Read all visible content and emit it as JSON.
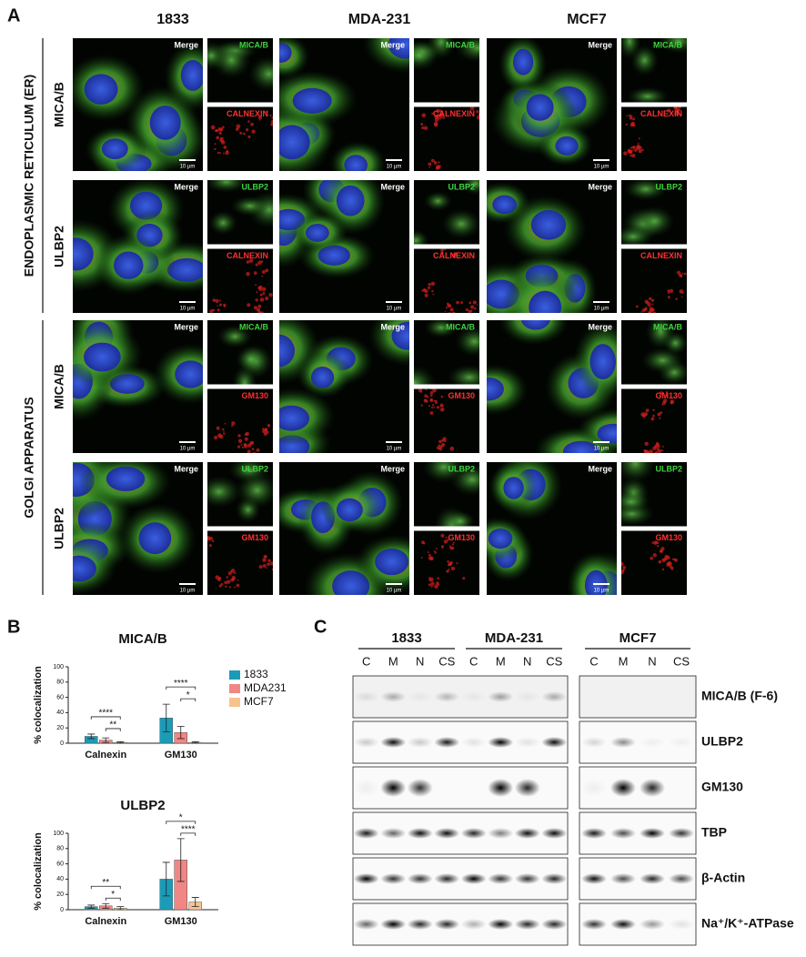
{
  "panel_a": {
    "label": "A",
    "columns": [
      "1833",
      "MDA-231",
      "MCF7"
    ],
    "merge_label": "Merge",
    "scale_label": "10 µm",
    "sections": [
      {
        "label": "ENDOPLASMIC RETICULUM (ER)",
        "rows": [
          {
            "label": "MICA/B",
            "green": "MICA/B",
            "red": "CALNEXIN"
          },
          {
            "label": "ULBP2",
            "green": "ULBP2",
            "red": "CALNEXIN"
          }
        ]
      },
      {
        "label": "GOLGI APPARATUS",
        "rows": [
          {
            "label": "MICA/B",
            "green": "MICA/B",
            "red": "GM130"
          },
          {
            "label": "ULBP2",
            "green": "ULBP2",
            "red": "GM130"
          }
        ]
      }
    ]
  },
  "panel_b": {
    "label": "B",
    "charts": [
      {
        "type": "bar",
        "title": "MICA/B",
        "y_label": "% colocalization",
        "categories": [
          "Calnexin",
          "GM130"
        ],
        "series": [
          {
            "name": "1833",
            "color": "#1b9bb8",
            "values": [
              9,
              33
            ],
            "errors": [
              3,
              18
            ]
          },
          {
            "name": "MDA231",
            "color": "#f08784",
            "values": [
              4,
              14
            ],
            "errors": [
              3,
              8
            ]
          },
          {
            "name": "MCF7",
            "color": "#f6c38d",
            "values": [
              1,
              1
            ],
            "errors": [
              1,
              1
            ]
          }
        ],
        "ylim": [
          0,
          100
        ],
        "yticks": [
          0,
          20,
          40,
          60,
          80,
          100
        ],
        "significance": [
          {
            "category": "Calnexin",
            "pair": [
              "1833",
              "MCF7"
            ],
            "label": "****"
          },
          {
            "category": "Calnexin",
            "pair": [
              "MDA231",
              "MCF7"
            ],
            "label": "**"
          },
          {
            "category": "GM130",
            "pair": [
              "1833",
              "MCF7"
            ],
            "label": "****"
          },
          {
            "category": "GM130",
            "pair": [
              "MDA231",
              "MCF7"
            ],
            "label": "*"
          }
        ]
      },
      {
        "type": "bar",
        "title": "ULBP2",
        "y_label": "% colocalization",
        "categories": [
          "Calnexin",
          "GM130"
        ],
        "series": [
          {
            "name": "1833",
            "color": "#1b9bb8",
            "values": [
              4,
              40
            ],
            "errors": [
              2,
              22
            ]
          },
          {
            "name": "MDA231",
            "color": "#f08784",
            "values": [
              5,
              65
            ],
            "errors": [
              3,
              28
            ]
          },
          {
            "name": "MCF7",
            "color": "#f6c38d",
            "values": [
              2,
              10
            ],
            "errors": [
              2,
              6
            ]
          }
        ],
        "ylim": [
          0,
          100
        ],
        "yticks": [
          0,
          20,
          40,
          60,
          80,
          100
        ],
        "significance": [
          {
            "category": "Calnexin",
            "pair": [
              "1833",
              "MCF7"
            ],
            "label": "**"
          },
          {
            "category": "Calnexin",
            "pair": [
              "MDA231",
              "MCF7"
            ],
            "label": "*"
          },
          {
            "category": "GM130",
            "pair": [
              "1833",
              "MCF7"
            ],
            "label": "*"
          },
          {
            "category": "GM130",
            "pair": [
              "MDA231",
              "MCF7"
            ],
            "label": "****"
          }
        ]
      }
    ]
  },
  "panel_c": {
    "label": "C",
    "groups": [
      {
        "name": "1833",
        "lanes": [
          "C",
          "M",
          "N",
          "CS"
        ]
      },
      {
        "name": "MDA-231",
        "lanes": [
          "C",
          "M",
          "N",
          "CS"
        ]
      },
      {
        "name": "MCF7",
        "lanes": [
          "C",
          "M",
          "N",
          "CS"
        ]
      }
    ],
    "blots": [
      "MICA/B (F-6)",
      "ULBP2",
      "GM130",
      "TBP",
      "β-Actin",
      "Na⁺/K⁺-ATPase"
    ]
  }
}
